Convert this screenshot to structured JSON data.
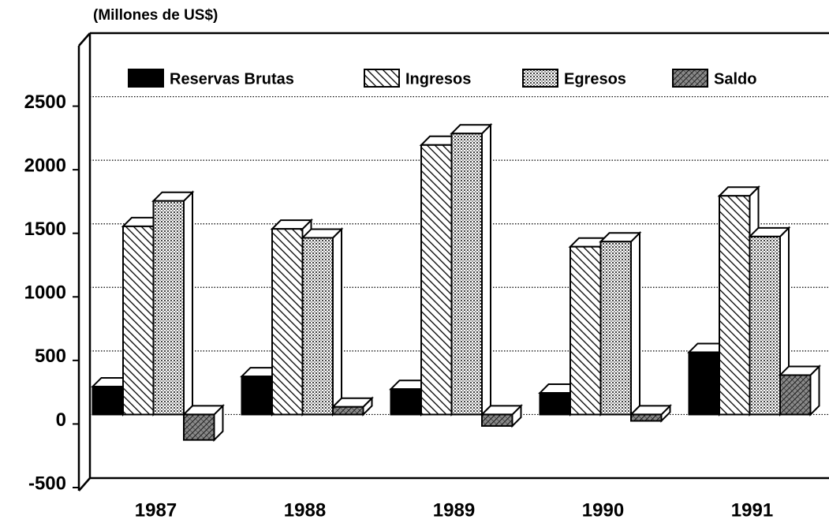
{
  "chart_data": {
    "type": "bar3d",
    "y_label": "(Millones de US$)",
    "categories": [
      "1987",
      "1988",
      "1989",
      "1990",
      "1991"
    ],
    "series": [
      {
        "name": "Reservas Brutas",
        "color": "#000000",
        "pattern": "solid",
        "values": [
          220,
          300,
          200,
          170,
          490
        ]
      },
      {
        "name": "Ingresos",
        "color": "#000000",
        "pattern": "hatch",
        "values": [
          1480,
          1460,
          2120,
          1320,
          1720
        ]
      },
      {
        "name": "Egresos",
        "color": "#000000",
        "pattern": "dots",
        "values": [
          1680,
          1390,
          2210,
          1360,
          1400
        ]
      },
      {
        "name": "Saldo",
        "color": "#000000",
        "pattern": "crosshatch",
        "values": [
          -200,
          60,
          -90,
          -50,
          310
        ]
      }
    ],
    "ylim": [
      -500,
      3000
    ],
    "yticks": [
      -500,
      0,
      500,
      1000,
      1500,
      2000,
      2500
    ],
    "grid": true,
    "legend": "top"
  }
}
